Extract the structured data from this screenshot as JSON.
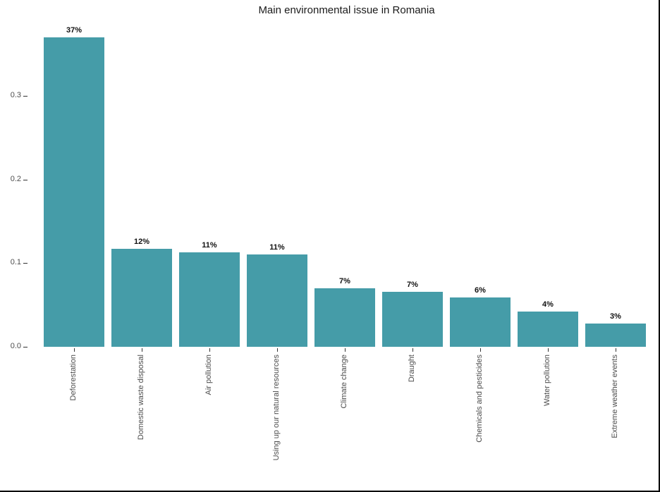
{
  "chart_data": {
    "type": "bar",
    "title": "Main environmental issue in Romania",
    "categories": [
      "Deforestation",
      "Domestic waste disposal",
      "Air pollution",
      "Using up our natural resources",
      "Climate change",
      "Draught",
      "Chemicals and pesticides",
      "Water pollution",
      "Extreme weather events"
    ],
    "values": [
      0.37,
      0.117,
      0.113,
      0.11,
      0.07,
      0.066,
      0.059,
      0.042,
      0.028
    ],
    "bar_labels": [
      "37%",
      "12%",
      "11%",
      "11%",
      "7%",
      "7%",
      "6%",
      "4%",
      "3%"
    ],
    "xlabel": "",
    "ylabel": "",
    "ylim": [
      0,
      0.37
    ],
    "y_ticks": [
      "0.0",
      "0.1",
      "0.2",
      "0.3"
    ],
    "y_tick_values": [
      0.0,
      0.1,
      0.2,
      0.3
    ],
    "grid": false,
    "legend_position": "none",
    "bar_color": "#459CA8",
    "axis_text_color": "#4d4d4d",
    "tick_mark_color": "#333333",
    "title_color": "#1a1a1a"
  }
}
